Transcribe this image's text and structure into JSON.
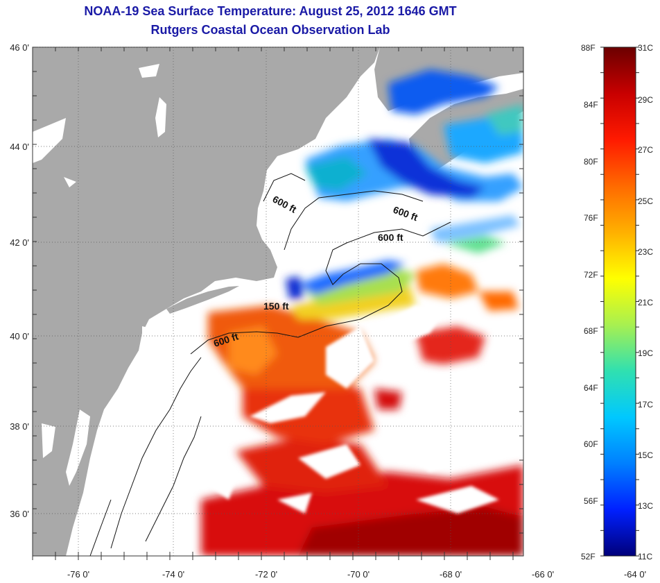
{
  "title": "NOAA-19 Sea Surface Temperature:  August 25, 2012 1646 GMT",
  "subtitle": "Rutgers Coastal Ocean Observation Lab",
  "lat_labels": [
    "46 0'",
    "44 0'",
    "42 0'",
    "40 0'",
    "38 0'",
    "36 0'"
  ],
  "lon_labels": [
    "-76 0'",
    "-74 0'",
    "-72 0'",
    "-70 0'",
    "-68 0'",
    "-66 0'",
    "-64 0'"
  ],
  "depth_labels": [
    "600 ft",
    "600 ft",
    "600 ft",
    "150 ft",
    "600 ft"
  ],
  "colorbar": {
    "f_labels": [
      "88F",
      "84F",
      "80F",
      "76F",
      "72F",
      "68F",
      "64F",
      "60F",
      "56F",
      "52F"
    ],
    "c_labels": [
      "31C",
      "29C",
      "27C",
      "25C",
      "23C",
      "21C",
      "19C",
      "17C",
      "15C",
      "13C",
      "11C"
    ],
    "colors": [
      "#6b0000",
      "#c80000",
      "#ff1a00",
      "#ff6a00",
      "#ffb000",
      "#ffff00",
      "#a8f050",
      "#30e0b0",
      "#00c8ff",
      "#0080ff",
      "#0020ff",
      "#00007a"
    ]
  },
  "colors": {
    "land": "#a9a9a9",
    "title": "#1a1aa6",
    "cloud": "#ffffff"
  }
}
